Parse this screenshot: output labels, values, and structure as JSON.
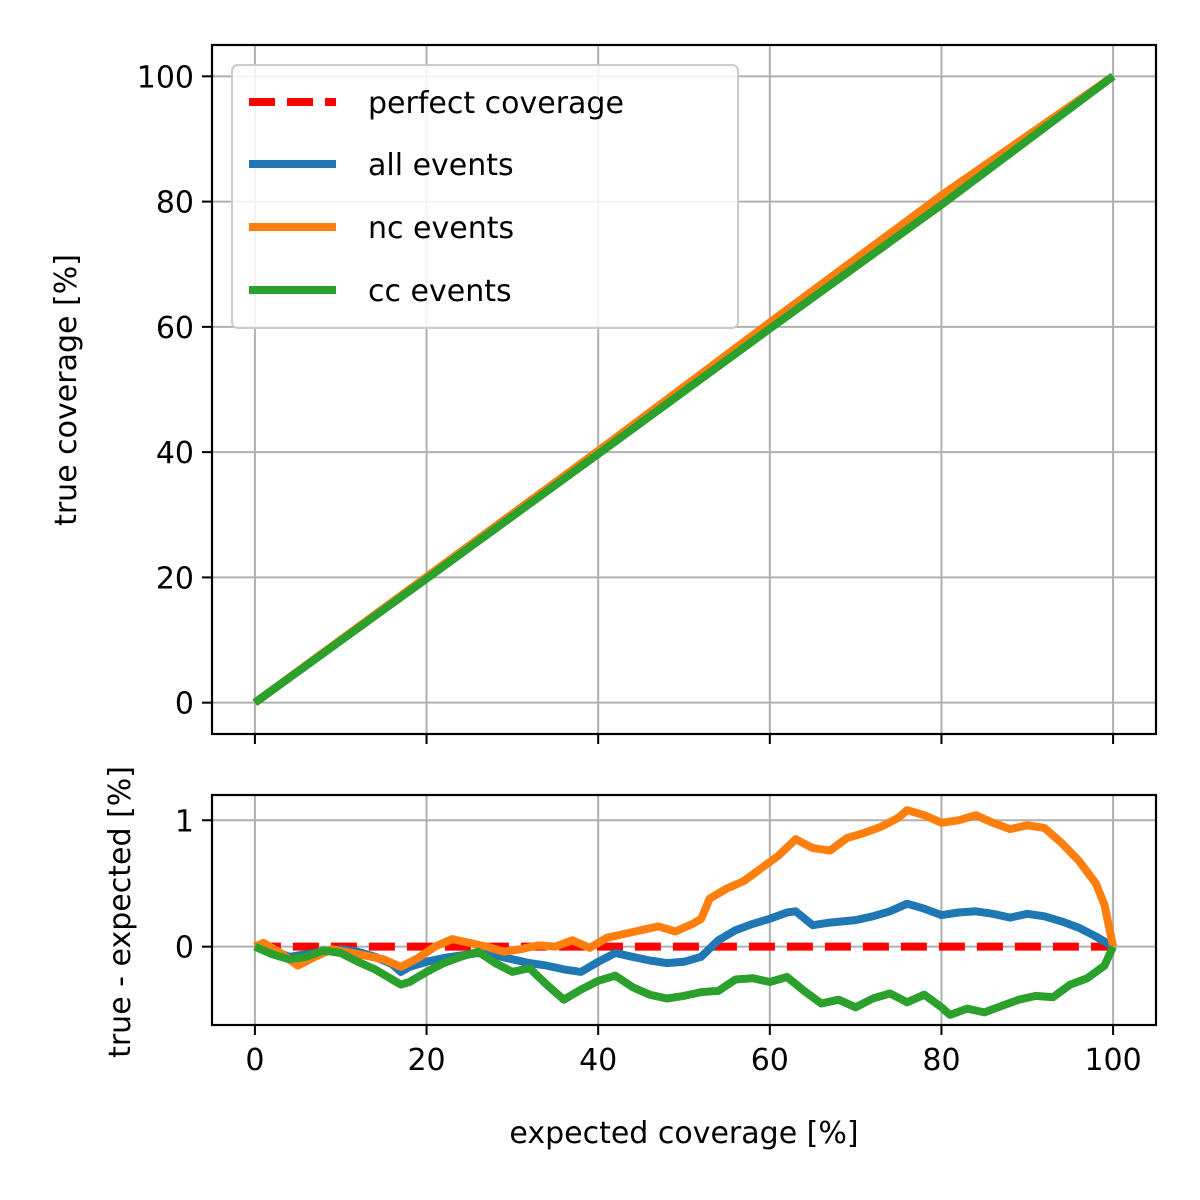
{
  "chart_data": [
    {
      "type": "line",
      "xlabel": "",
      "ylabel": "true coverage [%]",
      "xlim": [
        -5,
        105
      ],
      "ylim": [
        -5,
        105
      ],
      "xticks": [
        0,
        20,
        40,
        60,
        80,
        100
      ],
      "yticks": [
        0,
        20,
        40,
        60,
        80,
        100
      ],
      "show_x_ticklabels": false,
      "grid": true,
      "legend_position": "upper-left",
      "series": [
        {
          "name": "perfect coverage",
          "color": "#ff0000",
          "style": "dashed",
          "x": [
            0,
            100
          ],
          "y": [
            0,
            100
          ]
        },
        {
          "name": "all events",
          "color": "#1f77b4",
          "style": "solid",
          "x": [
            0,
            20,
            40,
            60,
            80,
            100
          ],
          "y": [
            0,
            19.9,
            39.9,
            60.2,
            80.2,
            100
          ]
        },
        {
          "name": "nc events",
          "color": "#ff7f0e",
          "style": "solid",
          "x": [
            0,
            20,
            40,
            60,
            80,
            100
          ],
          "y": [
            0,
            20.1,
            40.2,
            60.7,
            81.0,
            100
          ]
        },
        {
          "name": "cc events",
          "color": "#2ca02c",
          "style": "solid",
          "x": [
            0,
            20,
            40,
            60,
            80,
            100
          ],
          "y": [
            0,
            19.8,
            39.7,
            59.7,
            79.5,
            100
          ]
        }
      ]
    },
    {
      "type": "line",
      "xlabel": "expected coverage [%]",
      "ylabel": "true - expected [%]",
      "xlim": [
        -5,
        105
      ],
      "ylim": [
        -0.62,
        1.2
      ],
      "xticks": [
        0,
        20,
        40,
        60,
        80,
        100
      ],
      "yticks": [
        0,
        1
      ],
      "grid": true,
      "series": [
        {
          "name": "perfect coverage",
          "color": "#ff0000",
          "style": "dashed",
          "x": [
            0,
            100
          ],
          "y": [
            0,
            0
          ]
        },
        {
          "name": "all events",
          "color": "#1f77b4",
          "style": "solid",
          "x": [
            0,
            2,
            4,
            6,
            8,
            10,
            12,
            14,
            16,
            17,
            18,
            20,
            22,
            24,
            26,
            28,
            30,
            32,
            34,
            36,
            38,
            40,
            42,
            44,
            46,
            48,
            50,
            52,
            54,
            56,
            58,
            60,
            62,
            63,
            65,
            67,
            70,
            72,
            74,
            76,
            78,
            80,
            82,
            84,
            86,
            88,
            90,
            92,
            94,
            96,
            98,
            100
          ],
          "y": [
            0,
            -0.03,
            -0.08,
            -0.06,
            -0.04,
            -0.02,
            -0.04,
            -0.08,
            -0.14,
            -0.2,
            -0.16,
            -0.12,
            -0.09,
            -0.07,
            -0.05,
            -0.07,
            -0.1,
            -0.13,
            -0.15,
            -0.18,
            -0.2,
            -0.12,
            -0.05,
            -0.08,
            -0.11,
            -0.13,
            -0.12,
            -0.08,
            0.05,
            0.13,
            0.18,
            0.22,
            0.27,
            0.28,
            0.17,
            0.19,
            0.21,
            0.24,
            0.28,
            0.34,
            0.3,
            0.25,
            0.27,
            0.28,
            0.26,
            0.23,
            0.26,
            0.24,
            0.2,
            0.15,
            0.08,
            0
          ]
        },
        {
          "name": "nc events",
          "color": "#ff7f0e",
          "style": "solid",
          "x": [
            0,
            1,
            3,
            5,
            7,
            9,
            12,
            15,
            17,
            19,
            21,
            23,
            25,
            27,
            29,
            31,
            33,
            35,
            37,
            39,
            41,
            43,
            45,
            47,
            49,
            51,
            52,
            53,
            55,
            57,
            59,
            61,
            63,
            65,
            67,
            69,
            71,
            73,
            75,
            76,
            78,
            80,
            82,
            84,
            86,
            88,
            90,
            92,
            94,
            96,
            98,
            99,
            100
          ],
          "y": [
            0,
            0.03,
            -0.05,
            -0.15,
            -0.08,
            -0.02,
            -0.06,
            -0.1,
            -0.16,
            -0.09,
            0.0,
            0.06,
            0.03,
            0.0,
            -0.04,
            -0.02,
            0.01,
            0.0,
            0.05,
            -0.01,
            0.07,
            0.1,
            0.13,
            0.16,
            0.12,
            0.18,
            0.22,
            0.38,
            0.46,
            0.52,
            0.62,
            0.72,
            0.85,
            0.78,
            0.76,
            0.86,
            0.9,
            0.95,
            1.02,
            1.08,
            1.04,
            0.98,
            1.0,
            1.04,
            0.98,
            0.93,
            0.96,
            0.94,
            0.82,
            0.68,
            0.5,
            0.33,
            0
          ]
        },
        {
          "name": "cc events",
          "color": "#2ca02c",
          "style": "solid",
          "x": [
            0,
            2,
            4,
            6,
            8,
            10,
            12,
            14,
            16,
            17,
            18,
            20,
            22,
            24,
            26,
            28,
            30,
            32,
            34,
            36,
            38,
            40,
            42,
            44,
            46,
            48,
            50,
            52,
            54,
            56,
            58,
            60,
            62,
            64,
            66,
            68,
            70,
            72,
            74,
            76,
            78,
            80,
            81,
            83,
            85,
            87,
            89,
            91,
            93,
            95,
            97,
            99,
            100
          ],
          "y": [
            0,
            -0.06,
            -0.1,
            -0.08,
            -0.03,
            -0.05,
            -0.12,
            -0.18,
            -0.26,
            -0.3,
            -0.28,
            -0.2,
            -0.13,
            -0.08,
            -0.04,
            -0.13,
            -0.2,
            -0.17,
            -0.3,
            -0.42,
            -0.34,
            -0.27,
            -0.23,
            -0.32,
            -0.38,
            -0.41,
            -0.39,
            -0.36,
            -0.35,
            -0.26,
            -0.25,
            -0.28,
            -0.24,
            -0.35,
            -0.45,
            -0.42,
            -0.48,
            -0.41,
            -0.37,
            -0.44,
            -0.38,
            -0.48,
            -0.54,
            -0.49,
            -0.52,
            -0.47,
            -0.42,
            -0.39,
            -0.4,
            -0.3,
            -0.25,
            -0.15,
            0
          ]
        }
      ]
    }
  ]
}
